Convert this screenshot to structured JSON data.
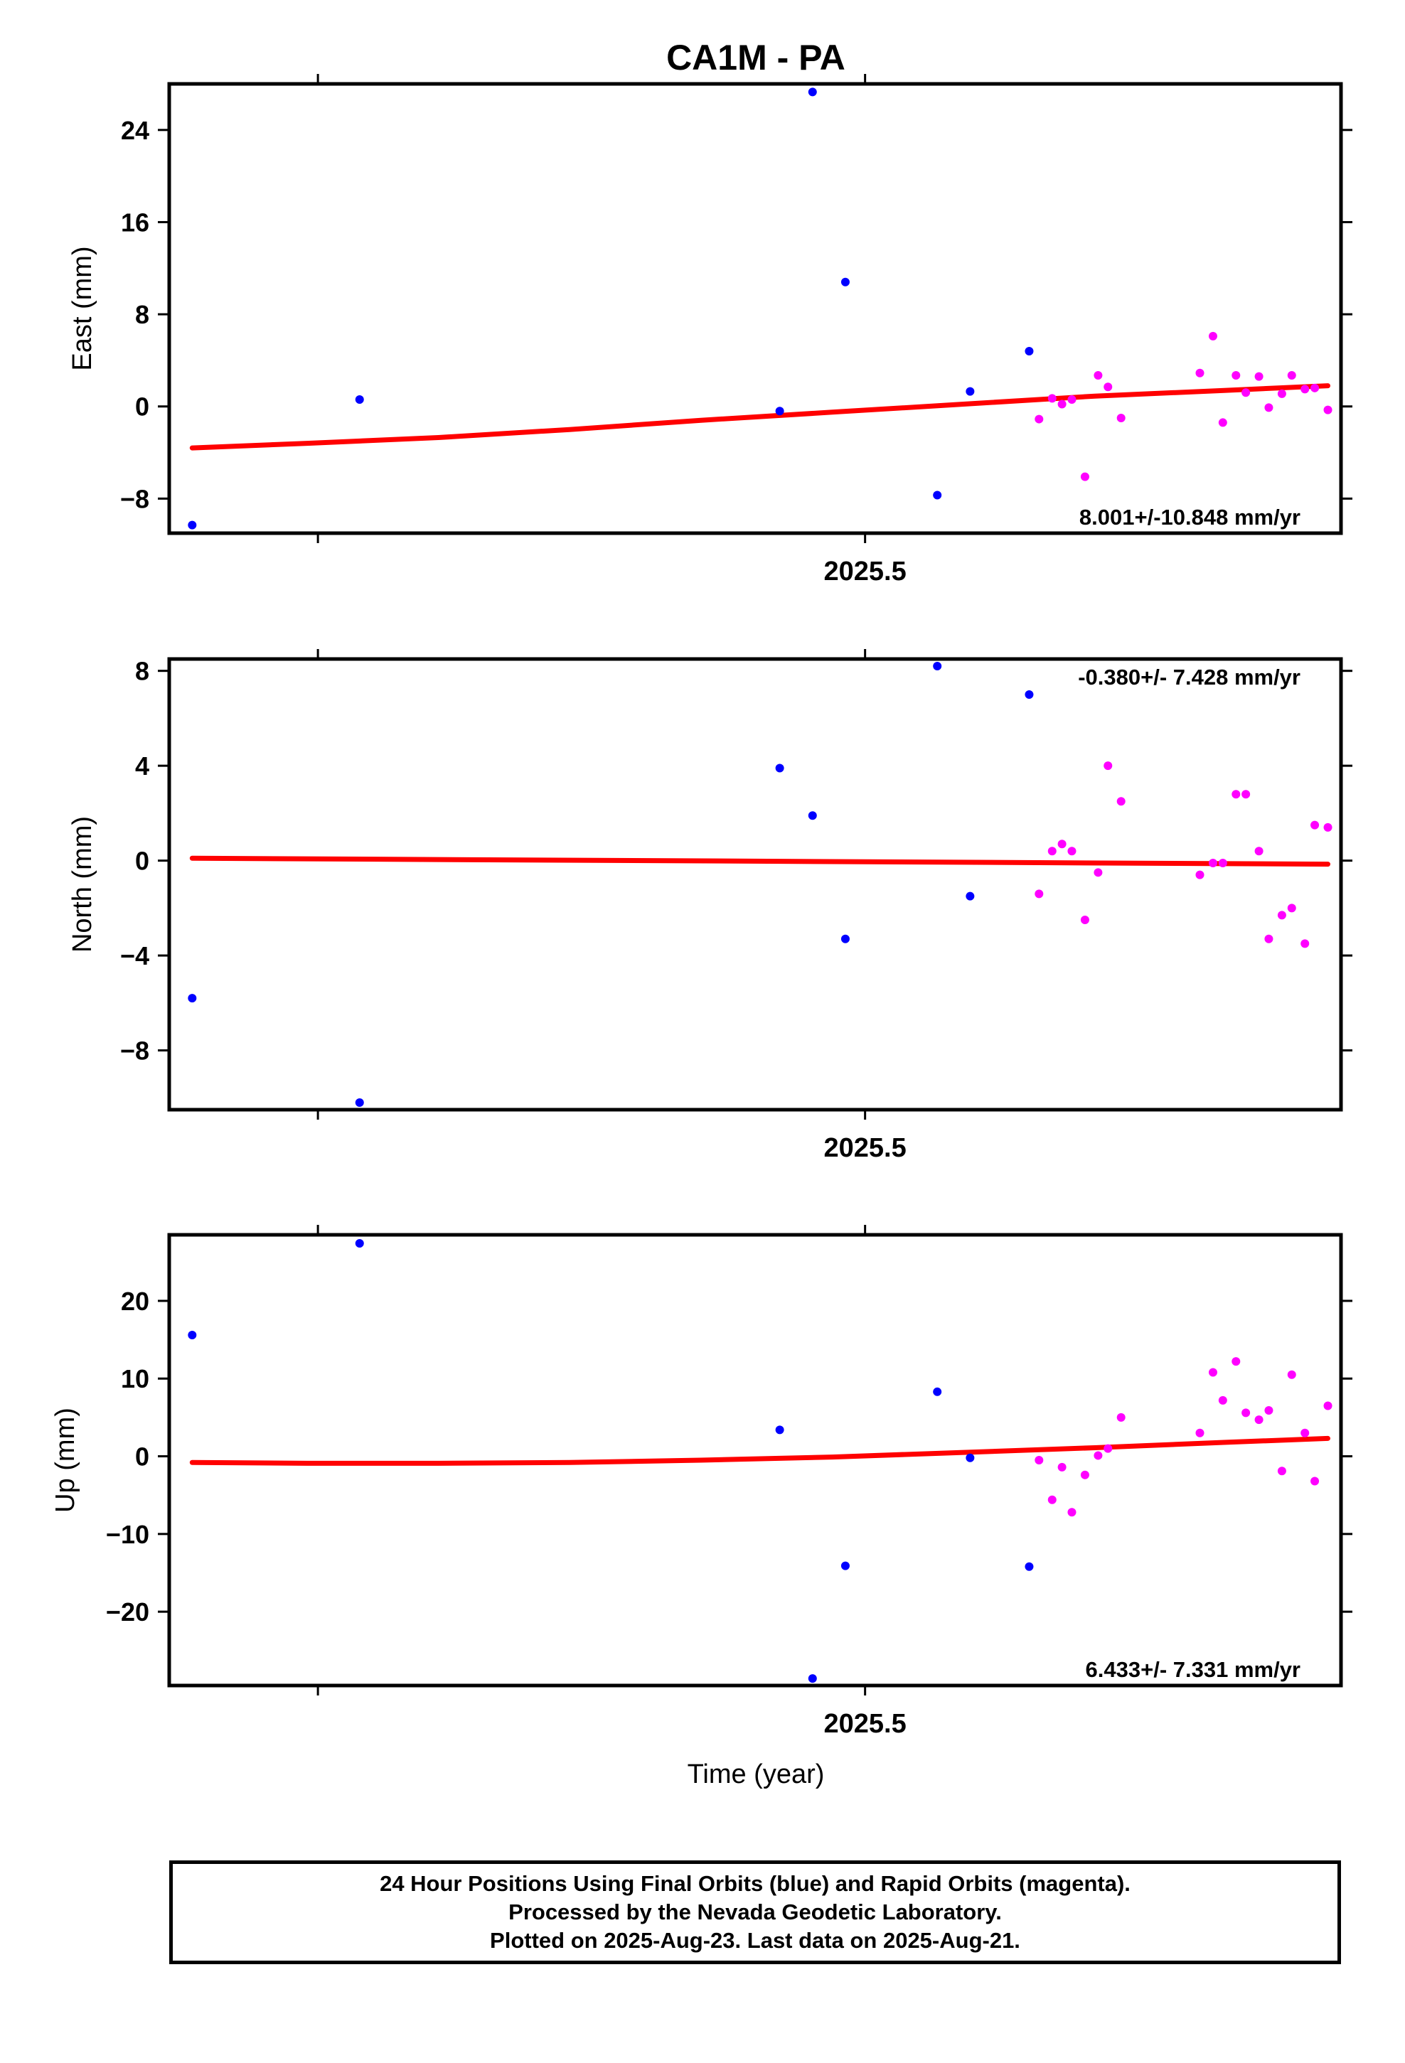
{
  "title": "CA1M - PA",
  "colors": {
    "final": "#0000ff",
    "rapid": "#ff00ff",
    "fit": "#ff0000",
    "frame": "#000000"
  },
  "footer": {
    "line1": "24 Hour Positions Using Final Orbits (blue) and Rapid Orbits (magenta).",
    "line2": "Processed by the Nevada Geodetic Laboratory.",
    "line3": "Plotted on 2025-Aug-23. Last data on 2025-Aug-21."
  },
  "chart_data": [
    {
      "type": "scatter",
      "panel": "east",
      "ylabel": "East (mm)",
      "xtick_label": "2025.5",
      "xlim": [
        2025.288,
        2025.645
      ],
      "ylim": [
        -11,
        28
      ],
      "yticks": [
        -8,
        0,
        8,
        16,
        24
      ],
      "ytick_labels": [
        "−8",
        "0",
        "8",
        "16",
        "24"
      ],
      "velocity_label": "8.001+/-10.848 mm/yr",
      "velocity_position": "bottom-right",
      "series": [
        {
          "name": "Final Orbits",
          "color": "#0000ff",
          "points": [
            [
              2025.295,
              -10.3
            ],
            [
              2025.346,
              0.6
            ],
            [
              2025.474,
              -0.4
            ],
            [
              2025.484,
              27.3
            ],
            [
              2025.494,
              10.8
            ],
            [
              2025.522,
              -7.7
            ],
            [
              2025.532,
              1.3
            ],
            [
              2025.55,
              4.8
            ]
          ]
        },
        {
          "name": "Rapid Orbits",
          "color": "#ff00ff",
          "points": [
            [
              2025.553,
              -1.1
            ],
            [
              2025.557,
              0.7
            ],
            [
              2025.56,
              0.2
            ],
            [
              2025.563,
              0.6
            ],
            [
              2025.567,
              -6.1
            ],
            [
              2025.571,
              2.7
            ],
            [
              2025.574,
              1.7
            ],
            [
              2025.578,
              -1.0
            ],
            [
              2025.602,
              2.9
            ],
            [
              2025.606,
              6.1
            ],
            [
              2025.609,
              -1.4
            ],
            [
              2025.613,
              2.7
            ],
            [
              2025.616,
              1.2
            ],
            [
              2025.62,
              2.6
            ],
            [
              2025.623,
              -0.1
            ],
            [
              2025.627,
              1.1
            ],
            [
              2025.63,
              2.7
            ],
            [
              2025.634,
              1.5
            ],
            [
              2025.637,
              1.6
            ],
            [
              2025.641,
              -0.3
            ]
          ]
        }
      ],
      "fit": {
        "name": "Fit",
        "color": "#ff0000",
        "points": [
          [
            2025.295,
            -3.6
          ],
          [
            2025.33,
            -3.2
          ],
          [
            2025.37,
            -2.7
          ],
          [
            2025.41,
            -2.0
          ],
          [
            2025.45,
            -1.2
          ],
          [
            2025.49,
            -0.5
          ],
          [
            2025.53,
            0.2
          ],
          [
            2025.57,
            0.9
          ],
          [
            2025.61,
            1.4
          ],
          [
            2025.641,
            1.8
          ]
        ]
      }
    },
    {
      "type": "scatter",
      "panel": "north",
      "ylabel": "North (mm)",
      "xtick_label": "2025.5",
      "xlim": [
        2025.288,
        2025.645
      ],
      "ylim": [
        -10.5,
        8.5
      ],
      "yticks": [
        -8,
        -4,
        0,
        4,
        8
      ],
      "ytick_labels": [
        "−8",
        "−4",
        "0",
        "4",
        "8"
      ],
      "velocity_label": "-0.380+/- 7.428 mm/yr",
      "velocity_position": "top-right",
      "series": [
        {
          "name": "Final Orbits",
          "color": "#0000ff",
          "points": [
            [
              2025.295,
              -5.8
            ],
            [
              2025.346,
              -10.2
            ],
            [
              2025.474,
              3.9
            ],
            [
              2025.484,
              1.9
            ],
            [
              2025.494,
              -3.3
            ],
            [
              2025.522,
              8.2
            ],
            [
              2025.532,
              -1.5
            ],
            [
              2025.55,
              7.0
            ]
          ]
        },
        {
          "name": "Rapid Orbits",
          "color": "#ff00ff",
          "points": [
            [
              2025.553,
              -1.4
            ],
            [
              2025.557,
              0.4
            ],
            [
              2025.56,
              0.7
            ],
            [
              2025.563,
              0.4
            ],
            [
              2025.567,
              -2.5
            ],
            [
              2025.571,
              -0.5
            ],
            [
              2025.574,
              4.0
            ],
            [
              2025.578,
              2.5
            ],
            [
              2025.602,
              -0.6
            ],
            [
              2025.606,
              -0.1
            ],
            [
              2025.609,
              -0.1
            ],
            [
              2025.613,
              2.8
            ],
            [
              2025.616,
              2.8
            ],
            [
              2025.62,
              0.4
            ],
            [
              2025.623,
              -3.3
            ],
            [
              2025.627,
              -2.3
            ],
            [
              2025.63,
              -2.0
            ],
            [
              2025.634,
              -3.5
            ],
            [
              2025.637,
              1.5
            ],
            [
              2025.641,
              1.4
            ]
          ]
        }
      ],
      "fit": {
        "name": "Fit",
        "color": "#ff0000",
        "points": [
          [
            2025.295,
            0.1
          ],
          [
            2025.641,
            -0.15
          ]
        ]
      }
    },
    {
      "type": "scatter",
      "panel": "up",
      "ylabel": "Up (mm)",
      "xtick_label": "2025.5",
      "xlim": [
        2025.288,
        2025.645
      ],
      "ylim": [
        -29.5,
        28.5
      ],
      "yticks": [
        -20,
        -10,
        0,
        10,
        20
      ],
      "ytick_labels": [
        "−20",
        "−10",
        "0",
        "10",
        "20"
      ],
      "velocity_label": "6.433+/- 7.331 mm/yr",
      "velocity_position": "bottom-right",
      "series": [
        {
          "name": "Final Orbits",
          "color": "#0000ff",
          "points": [
            [
              2025.295,
              15.6
            ],
            [
              2025.346,
              27.4
            ],
            [
              2025.474,
              3.4
            ],
            [
              2025.484,
              -28.6
            ],
            [
              2025.494,
              -14.1
            ],
            [
              2025.522,
              8.3
            ],
            [
              2025.532,
              -0.2
            ],
            [
              2025.55,
              -14.2
            ]
          ]
        },
        {
          "name": "Rapid Orbits",
          "color": "#ff00ff",
          "points": [
            [
              2025.553,
              -0.5
            ],
            [
              2025.557,
              -5.6
            ],
            [
              2025.56,
              -1.4
            ],
            [
              2025.563,
              -7.2
            ],
            [
              2025.567,
              -2.4
            ],
            [
              2025.571,
              0.1
            ],
            [
              2025.574,
              1.0
            ],
            [
              2025.578,
              5.0
            ],
            [
              2025.602,
              3.0
            ],
            [
              2025.606,
              10.8
            ],
            [
              2025.609,
              7.2
            ],
            [
              2025.613,
              12.2
            ],
            [
              2025.616,
              5.6
            ],
            [
              2025.62,
              4.7
            ],
            [
              2025.623,
              5.9
            ],
            [
              2025.627,
              -1.9
            ],
            [
              2025.63,
              10.5
            ],
            [
              2025.634,
              3.0
            ],
            [
              2025.637,
              -3.2
            ],
            [
              2025.641,
              6.5
            ]
          ]
        }
      ],
      "fit": {
        "name": "Fit",
        "color": "#ff0000",
        "points": [
          [
            2025.295,
            -0.8
          ],
          [
            2025.33,
            -0.9
          ],
          [
            2025.37,
            -0.9
          ],
          [
            2025.41,
            -0.8
          ],
          [
            2025.45,
            -0.5
          ],
          [
            2025.49,
            -0.1
          ],
          [
            2025.53,
            0.5
          ],
          [
            2025.57,
            1.1
          ],
          [
            2025.61,
            1.8
          ],
          [
            2025.641,
            2.3
          ]
        ]
      }
    }
  ],
  "x_axis_title": "Time (year)"
}
